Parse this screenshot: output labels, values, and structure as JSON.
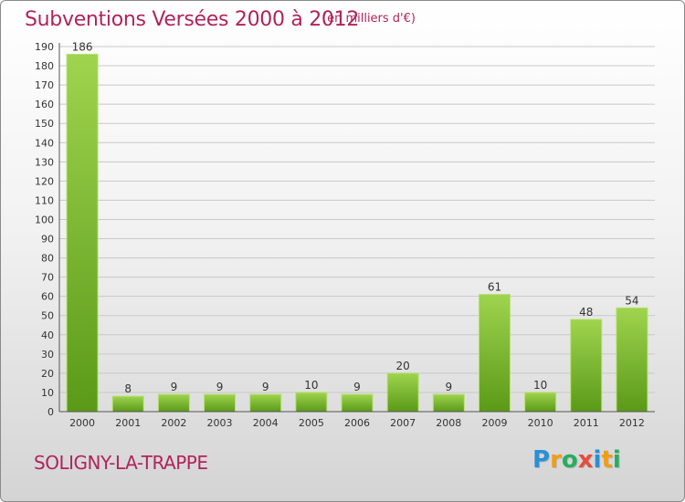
{
  "title": "Subventions Versées 2000 à 2012",
  "subtitle": "(en milliers d'€)",
  "location": "SOLIGNY-LA-TRAPPE",
  "logo": {
    "letters": [
      "P",
      "r",
      "o",
      "x",
      "i",
      "t",
      "i"
    ],
    "colors": [
      "#2a8fd6",
      "#f39c12",
      "#27ae60",
      "#e74c3c",
      "#2a8fd6",
      "#f39c12",
      "#27ae60"
    ]
  },
  "colors": {
    "bar_top": "#9fd44e",
    "bar_bottom": "#5a9a18",
    "grid": "#c8c8c8",
    "axis": "#555555"
  },
  "chart_data": {
    "type": "bar",
    "categories": [
      "2000",
      "2001",
      "2002",
      "2003",
      "2004",
      "2005",
      "2006",
      "2007",
      "2008",
      "2009",
      "2010",
      "2011",
      "2012"
    ],
    "values": [
      186,
      8,
      9,
      9,
      9,
      10,
      9,
      20,
      9,
      61,
      10,
      48,
      54
    ],
    "ylim": [
      0,
      190
    ],
    "yticks": [
      0,
      10,
      20,
      30,
      40,
      50,
      60,
      70,
      80,
      90,
      100,
      110,
      120,
      130,
      140,
      150,
      160,
      170,
      180,
      190
    ],
    "grid": true
  }
}
